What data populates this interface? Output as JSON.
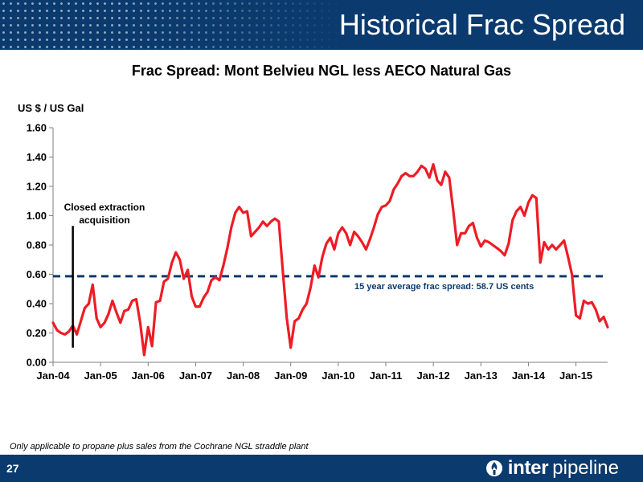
{
  "header": {
    "title": "Historical Frac Spread"
  },
  "footer": {
    "page_number": "27",
    "brand_bold": "inter",
    "brand_light": "pipeline",
    "logo_icon": "flame-drop-icon"
  },
  "footnote": "Only applicable to propane plus sales from the Cochrane NGL straddle plant",
  "colors": {
    "brand_navy": "#0b3a6e",
    "series_line": "#ee1c25",
    "average_line": "#0b3a6e",
    "marker": "#000000"
  },
  "chart_data": {
    "type": "line",
    "title": "Frac Spread: Mont Belvieu NGL less AECO Natural Gas",
    "ylabel": "US $ / US Gal",
    "xlabel": "",
    "ylim": [
      0,
      1.6
    ],
    "yticks": [
      "0.00",
      "0.20",
      "0.40",
      "0.60",
      "0.80",
      "1.00",
      "1.20",
      "1.40",
      "1.60"
    ],
    "xticks": [
      "Jan-04",
      "Jan-05",
      "Jan-06",
      "Jan-07",
      "Jan-08",
      "Jan-09",
      "Jan-10",
      "Jan-11",
      "Jan-12",
      "Jan-13",
      "Jan-14",
      "Jan-15"
    ],
    "grid": false,
    "x_start": "Jan-04",
    "x_step": "month",
    "series": [
      {
        "values": [
          0.27,
          0.22,
          0.2,
          0.19,
          0.21,
          0.25,
          0.19,
          0.28,
          0.37,
          0.4,
          0.53,
          0.3,
          0.24,
          0.27,
          0.33,
          0.42,
          0.34,
          0.27,
          0.35,
          0.36,
          0.42,
          0.43,
          0.27,
          0.05,
          0.24,
          0.11,
          0.41,
          0.42,
          0.55,
          0.57,
          0.68,
          0.75,
          0.7,
          0.57,
          0.63,
          0.45,
          0.38,
          0.38,
          0.44,
          0.48,
          0.56,
          0.58,
          0.56,
          0.66,
          0.78,
          0.92,
          1.02,
          1.06,
          1.02,
          1.03,
          0.86,
          0.89,
          0.92,
          0.96,
          0.93,
          0.96,
          0.98,
          0.96,
          0.62,
          0.3,
          0.1,
          0.28,
          0.3,
          0.36,
          0.4,
          0.51,
          0.66,
          0.58,
          0.72,
          0.81,
          0.85,
          0.77,
          0.88,
          0.92,
          0.88,
          0.8,
          0.89,
          0.86,
          0.82,
          0.77,
          0.84,
          0.92,
          1.01,
          1.06,
          1.07,
          1.1,
          1.18,
          1.22,
          1.27,
          1.29,
          1.27,
          1.27,
          1.3,
          1.34,
          1.32,
          1.26,
          1.35,
          1.24,
          1.21,
          1.3,
          1.26,
          1.04,
          0.8,
          0.88,
          0.88,
          0.93,
          0.95,
          0.85,
          0.79,
          0.83,
          0.82,
          0.8,
          0.78,
          0.76,
          0.73,
          0.81,
          0.97,
          1.03,
          1.06,
          1.0,
          1.09,
          1.14,
          1.12,
          0.68,
          0.82,
          0.77,
          0.8,
          0.77,
          0.8,
          0.83,
          0.72,
          0.6,
          0.32,
          0.3,
          0.42,
          0.4,
          0.41,
          0.36,
          0.28,
          0.31,
          0.24
        ]
      }
    ],
    "reference_line": {
      "value": 0.587,
      "style": "dashed",
      "label": "15 year average frac spread: 58.7 US cents"
    },
    "annotation": {
      "lines": [
        "Closed extraction",
        "acquisition"
      ],
      "x": "Jun-04",
      "y_from": 0.1,
      "y_to": 0.93
    }
  }
}
